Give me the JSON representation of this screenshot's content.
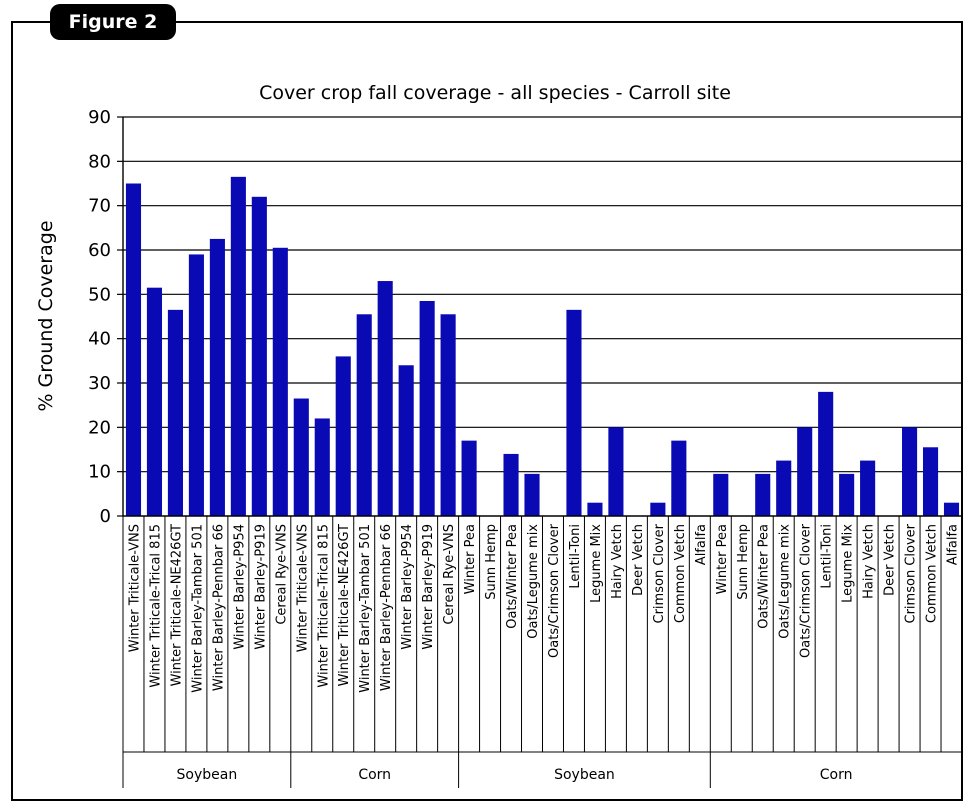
{
  "figure_label": "Figure 2",
  "colors": {
    "bar": "#0a0ab4",
    "axis": "#000000"
  },
  "chart_data": {
    "type": "bar",
    "title": "Cover crop fall coverage - all species - Carroll site",
    "ylabel": "% Ground Coverage",
    "xlabel": "",
    "ylim": [
      0,
      90
    ],
    "yticks": [
      0,
      10,
      20,
      30,
      40,
      50,
      60,
      70,
      80,
      90
    ],
    "grid": true,
    "categories": [
      "Winter Triticale-VNS",
      "Winter Triticale-Trical 815",
      "Winter Triticale-NE426GT",
      "Winter Barley-Tambar 501",
      "Winter Barley-Pennbar 66",
      "Winter Barley-P954",
      "Winter Barley-P919",
      "Cereal Rye-VNS",
      "Winter Triticale-VNS",
      "Winter Triticale-Trical 815",
      "Winter Triticale-NE426GT",
      "Winter Barley-Tambar 501",
      "Winter Barley-Pennbar 66",
      "Winter Barley-P954",
      "Winter Barley-P919",
      "Cereal Rye-VNS",
      "Winter Pea",
      "Sunn Hemp",
      "Oats/Winter Pea",
      "Oats/Legume mix",
      "Oats/Crimson Clover",
      "Lentil-Toni",
      "Legume Mix",
      "Hairy Vetch",
      "Deer Vetch",
      "Crimson Clover",
      "Common Vetch",
      "Alfalfa",
      "Winter Pea",
      "Sunn Hemp",
      "Oats/Winter Pea",
      "Oats/Legume mix",
      "Oats/Crimson Clover",
      "Lentil-Toni",
      "Legume Mix",
      "Hairy Vetch",
      "Deer Vetch",
      "Crimson Clover",
      "Common Vetch",
      "Alfalfa"
    ],
    "values": [
      75,
      51.5,
      46.5,
      59,
      62.5,
      76.5,
      72,
      60.5,
      26.5,
      22,
      36,
      45.5,
      53,
      34,
      48.5,
      45.5,
      17,
      0,
      14,
      9.5,
      0,
      46.5,
      3,
      20,
      0,
      3,
      17,
      0,
      9.5,
      0,
      9.5,
      12.5,
      20,
      28,
      9.5,
      12.5,
      0,
      20,
      15.5,
      3
    ],
    "groups": [
      {
        "label": "Soybean",
        "start": 0,
        "count": 8
      },
      {
        "label": "Corn",
        "start": 8,
        "count": 8
      },
      {
        "label": "Soybean",
        "start": 16,
        "count": 12
      },
      {
        "label": "Corn",
        "start": 28,
        "count": 12
      }
    ]
  }
}
